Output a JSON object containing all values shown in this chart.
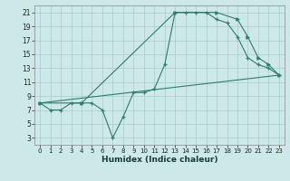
{
  "xlabel": "Humidex (Indice chaleur)",
  "bg_color": "#cce8e8",
  "line_color": "#2e7d6e",
  "grid_color": "#b0d4d4",
  "xlim": [
    -0.5,
    23.5
  ],
  "ylim": [
    2,
    22
  ],
  "xticks": [
    0,
    1,
    2,
    3,
    4,
    5,
    6,
    7,
    8,
    9,
    10,
    11,
    12,
    13,
    14,
    15,
    16,
    17,
    18,
    19,
    20,
    21,
    22,
    23
  ],
  "yticks": [
    3,
    5,
    7,
    9,
    11,
    13,
    15,
    17,
    19,
    21
  ],
  "series0_x": [
    0,
    1,
    2,
    3,
    4,
    5,
    6,
    7,
    8,
    9,
    10,
    11,
    12,
    13,
    14,
    15,
    16,
    17,
    18,
    19,
    20,
    21,
    22,
    23
  ],
  "series0_y": [
    8,
    7,
    7,
    8,
    8,
    8,
    7,
    3,
    6,
    9.5,
    9.5,
    10,
    13.5,
    21,
    21,
    21,
    21,
    20,
    19.5,
    17.5,
    14.5,
    13.5,
    13,
    12
  ],
  "series1_x": [
    0,
    4,
    13,
    17,
    19,
    20,
    21,
    22,
    23
  ],
  "series1_y": [
    8,
    8,
    21,
    21,
    20,
    17.5,
    14.5,
    13.5,
    12
  ],
  "series2_x": [
    0,
    23
  ],
  "series2_y": [
    8,
    12
  ]
}
